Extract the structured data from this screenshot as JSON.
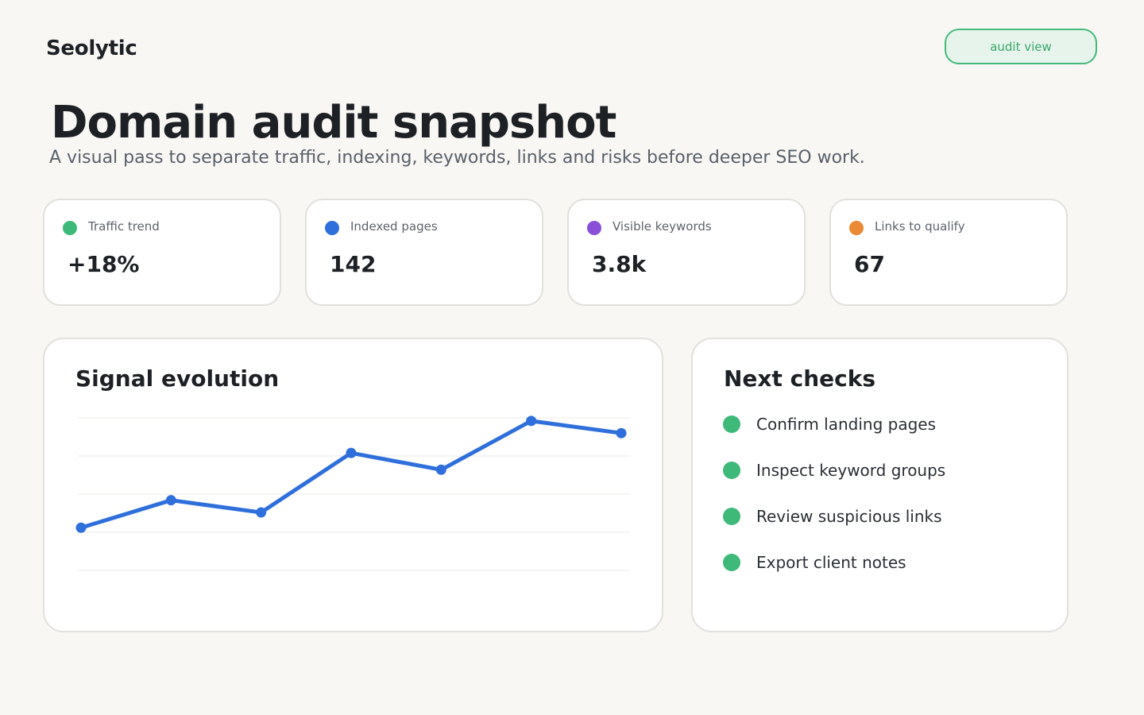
{
  "brand": "Seolytic",
  "header": {
    "button_label": "audit view"
  },
  "hero": {
    "title": "Domain audit snapshot",
    "subtitle": "A visual pass to separate traffic, indexing, keywords, links and risks before deeper SEO work."
  },
  "kpis": [
    {
      "label": "Traffic trend",
      "value": "+18%",
      "color": "#3fb979"
    },
    {
      "label": "Indexed pages",
      "value": "142",
      "color": "#2f6fdc"
    },
    {
      "label": "Visible keywords",
      "value": "3.8k",
      "color": "#8a4fd8"
    },
    {
      "label": "Links to qualify",
      "value": "67",
      "color": "#ea8a35"
    }
  ],
  "signal_panel": {
    "title": "Signal evolution"
  },
  "chart_data": {
    "type": "line",
    "title": "Signal evolution",
    "x": [
      1,
      2,
      3,
      4,
      5,
      6,
      7
    ],
    "series": [
      {
        "values": [
          28,
          46,
          38,
          77,
          66,
          98,
          90
        ],
        "color": "#2f6fdc"
      }
    ],
    "ylim": [
      0,
      100
    ],
    "grid": true,
    "legend": "none"
  },
  "next_checks": {
    "title": "Next checks",
    "items": [
      "Confirm landing pages",
      "Inspect keyword groups",
      "Review suspicious links",
      "Export client notes"
    ]
  }
}
